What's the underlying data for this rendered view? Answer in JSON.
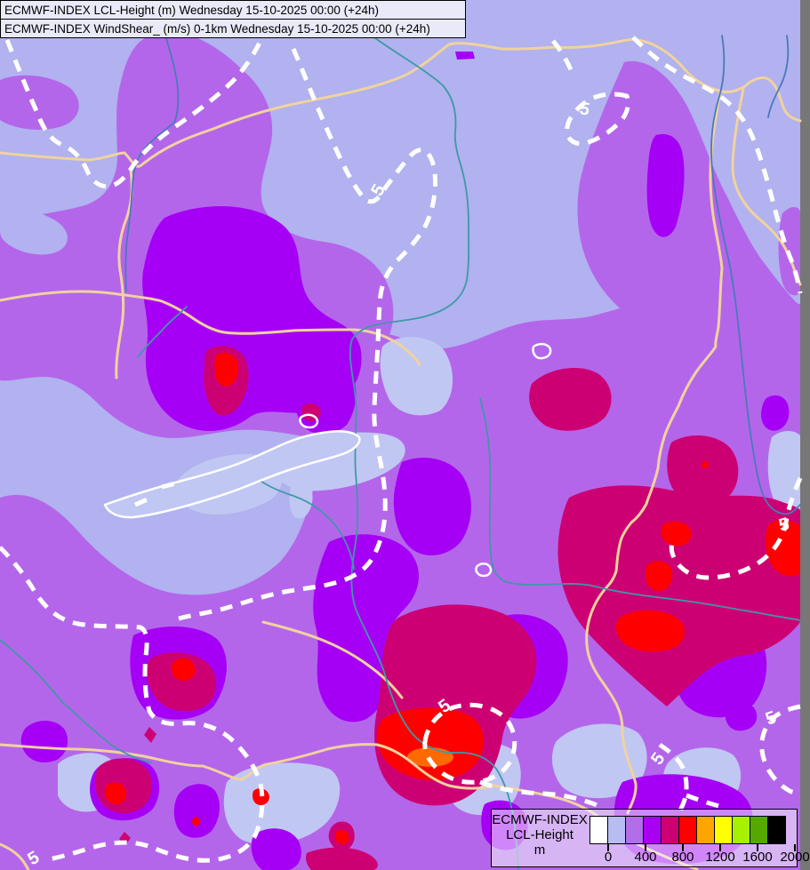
{
  "header": {
    "line1": "ECMWF-INDEX LCL-Height (m) Wednesday 15-10-2025 00:00 (+24h)",
    "line2": "ECMWF-INDEX WindShear_ (m/s) 0-1km Wednesday 15-10-2025 00:00 (+24h)"
  },
  "map": {
    "contour_label": "5",
    "palette": {
      "background": "#b1b2ef",
      "light": "#c1c7f3",
      "purple": "#b466eb",
      "violet": "#a500f5",
      "magenta": "#cd0073",
      "red": "#ff0000",
      "orange_core": "#ff6a00",
      "border": "#f0d29e",
      "river_blue": "#4a7ab8",
      "river_teal": "#3f98a8",
      "contour": "#ffffff",
      "lake_outline": "#ffffff"
    }
  },
  "legend": {
    "title_line1": "ECMWF-INDEX",
    "title_line2": "LCL-Height",
    "unit": "m",
    "ticks": [
      "0",
      "400",
      "800",
      "1200",
      "1600",
      "2000"
    ],
    "colors": [
      "#ffffff",
      "#b7bdf2",
      "#b16ee8",
      "#a800f2",
      "#cd0073",
      "#ff0000",
      "#ffa500",
      "#ffff00",
      "#a6f000",
      "#55a800",
      "#000000"
    ]
  }
}
